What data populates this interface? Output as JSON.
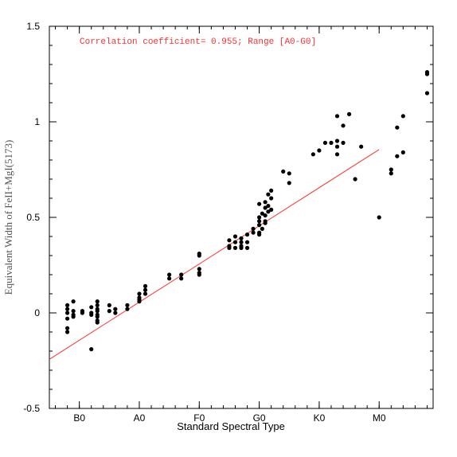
{
  "chart_data": {
    "type": "scatter",
    "title": "",
    "annotation": "Correlation coefficient= 0.955; Range [A0-G0]",
    "xlabel": "Standard Spectral Type",
    "ylabel": "Equivalent Width of FeII+MgI(5173)",
    "x_tick_labels": [
      "B0",
      "A0",
      "F0",
      "G0",
      "K0",
      "M0"
    ],
    "x_tick_values": [
      0,
      10,
      20,
      30,
      40,
      50
    ],
    "xlim": [
      -5,
      59
    ],
    "y_tick_labels": [
      "-0.5",
      "0",
      "0.5",
      "1",
      "1.5"
    ],
    "y_tick_values": [
      -0.5,
      0,
      0.5,
      1,
      1.5
    ],
    "ylim": [
      -0.5,
      1.5
    ],
    "grid": false,
    "colors": {
      "points": "#000000",
      "fit_line": "#ff3030",
      "annotation": "#ff3030"
    },
    "points": [
      [
        -2,
        0.04
      ],
      [
        -2,
        0.02
      ],
      [
        -2,
        0.0
      ],
      [
        -2,
        -0.03
      ],
      [
        -2,
        -0.08
      ],
      [
        -2,
        -0.1
      ],
      [
        -1,
        0.06
      ],
      [
        -1,
        0.01
      ],
      [
        -1,
        -0.01
      ],
      [
        -1,
        -0.02
      ],
      [
        0.5,
        0.01
      ],
      [
        0.5,
        0.0
      ],
      [
        2,
        0.03
      ],
      [
        2,
        0.0
      ],
      [
        2,
        -0.01
      ],
      [
        2,
        -0.19
      ],
      [
        3,
        0.06
      ],
      [
        3,
        0.04
      ],
      [
        3,
        0.02
      ],
      [
        3,
        0.01
      ],
      [
        3,
        -0.01
      ],
      [
        3,
        -0.02
      ],
      [
        3,
        -0.04
      ],
      [
        3,
        -0.05
      ],
      [
        5,
        0.04
      ],
      [
        5,
        0.01
      ],
      [
        6,
        0.02
      ],
      [
        6,
        0.0
      ],
      [
        8,
        0.04
      ],
      [
        8,
        0.02
      ],
      [
        10,
        0.1
      ],
      [
        10,
        0.08
      ],
      [
        10,
        0.07
      ],
      [
        10,
        0.06
      ],
      [
        11,
        0.14
      ],
      [
        11,
        0.12
      ],
      [
        11,
        0.1
      ],
      [
        15,
        0.2
      ],
      [
        15,
        0.18
      ],
      [
        17,
        0.2
      ],
      [
        17,
        0.18
      ],
      [
        20,
        0.31
      ],
      [
        20,
        0.3
      ],
      [
        20,
        0.23
      ],
      [
        20,
        0.21
      ],
      [
        20,
        0.2
      ],
      [
        25,
        0.38
      ],
      [
        25,
        0.35
      ],
      [
        25,
        0.34
      ],
      [
        26,
        0.4
      ],
      [
        26,
        0.37
      ],
      [
        26,
        0.34
      ],
      [
        27,
        0.39
      ],
      [
        27,
        0.37
      ],
      [
        27,
        0.35
      ],
      [
        27,
        0.34
      ],
      [
        28,
        0.41
      ],
      [
        28,
        0.37
      ],
      [
        28,
        0.34
      ],
      [
        29,
        0.44
      ],
      [
        29,
        0.42
      ],
      [
        30,
        0.57
      ],
      [
        30,
        0.5
      ],
      [
        30,
        0.48
      ],
      [
        30,
        0.46
      ],
      [
        30,
        0.42
      ],
      [
        30,
        0.41
      ],
      [
        30.5,
        0.52
      ],
      [
        30.5,
        0.44
      ],
      [
        31,
        0.58
      ],
      [
        31,
        0.55
      ],
      [
        31,
        0.51
      ],
      [
        31,
        0.48
      ],
      [
        31,
        0.47
      ],
      [
        31.5,
        0.62
      ],
      [
        31.5,
        0.56
      ],
      [
        31.5,
        0.53
      ],
      [
        32,
        0.64
      ],
      [
        32,
        0.6
      ],
      [
        32,
        0.54
      ],
      [
        34,
        0.74
      ],
      [
        35,
        0.73
      ],
      [
        35,
        0.68
      ],
      [
        39,
        0.83
      ],
      [
        40,
        0.85
      ],
      [
        41,
        0.89
      ],
      [
        42,
        0.89
      ],
      [
        43,
        1.03
      ],
      [
        43,
        0.9
      ],
      [
        43,
        0.87
      ],
      [
        43,
        0.83
      ],
      [
        44,
        0.98
      ],
      [
        44,
        0.89
      ],
      [
        45,
        1.04
      ],
      [
        46,
        0.7
      ],
      [
        47,
        0.87
      ],
      [
        50,
        0.5
      ],
      [
        52,
        0.75
      ],
      [
        52,
        0.73
      ],
      [
        53,
        0.97
      ],
      [
        53,
        0.82
      ],
      [
        54,
        1.03
      ],
      [
        54,
        0.84
      ],
      [
        58,
        1.26
      ],
      [
        58,
        1.25
      ],
      [
        58,
        1.15
      ]
    ],
    "fit_line": {
      "x": [
        -5,
        50
      ],
      "y": [
        -0.243,
        0.855
      ]
    }
  }
}
